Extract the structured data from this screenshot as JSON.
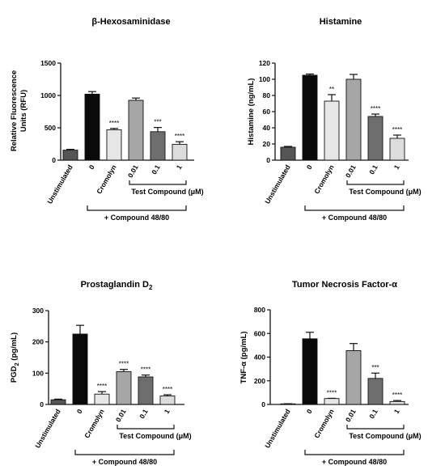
{
  "figure": {
    "colors": {
      "Unstimulated": "#555555",
      "0": "#0a0a0a",
      "Cromolyn": "#e6e6e6",
      "0.01": "#a6a6a6",
      "0.1": "#6e6e6e",
      "1": "#dcdcdc"
    }
  },
  "chart_data": [
    {
      "type": "bar",
      "title": "β-Hexosaminidase",
      "ylabel": "Relative Fluorescence Units (RFU)",
      "ylabel_lines": [
        "Relative Fluorescence",
        "Units (RFU)"
      ],
      "categories": [
        "Unstimulated",
        "0",
        "Cromolyn",
        "0.01",
        "0.1",
        "1"
      ],
      "values": [
        155,
        1020,
        470,
        925,
        440,
        245
      ],
      "errors": [
        12,
        40,
        20,
        35,
        65,
        40
      ],
      "significance": [
        "",
        "",
        "****",
        "",
        "***",
        "****"
      ],
      "ylim": [
        0,
        1500
      ],
      "yticks": [
        0,
        500,
        1000,
        1500
      ],
      "bracket_test_label": "Test Compound (μM)",
      "bracket_compound_label": "+ Compound 48/80",
      "grid": false,
      "legend": "none"
    },
    {
      "type": "bar",
      "title": "Histamine",
      "ylabel": "Histamine (ng/mL)",
      "ylabel_lines": [
        "Histamine (ng/mL)"
      ],
      "categories": [
        "Unstimulated",
        "0",
        "Cromolyn",
        "0.01",
        "0.1",
        "1"
      ],
      "values": [
        16,
        105,
        73,
        100,
        54,
        27
      ],
      "errors": [
        1,
        1.5,
        8,
        6,
        3,
        4
      ],
      "significance": [
        "",
        "",
        "**",
        "",
        "****",
        "****"
      ],
      "ylim": [
        0,
        120
      ],
      "yticks": [
        0,
        20,
        40,
        60,
        80,
        100,
        120
      ],
      "bracket_test_label": "Test Compound (μM)",
      "bracket_compound_label": "+ Compound 48/80",
      "grid": false,
      "legend": "none"
    },
    {
      "type": "bar",
      "title": "Prostaglandin D",
      "title_sub": "2",
      "ylabel": "PGD2 (pg/mL)",
      "ylabel_parts": [
        "PGD",
        "2",
        " (pg/mL)"
      ],
      "categories": [
        "Unstimulated",
        "0",
        "Cromolyn",
        "0.01",
        "0.1",
        "1"
      ],
      "values": [
        15,
        225,
        33,
        105,
        88,
        27
      ],
      "errors": [
        2,
        28,
        8,
        7,
        6,
        4
      ],
      "significance": [
        "",
        "",
        "****",
        "****",
        "****",
        "****"
      ],
      "ylim": [
        0,
        300
      ],
      "yticks": [
        0,
        100,
        200,
        300
      ],
      "bracket_test_label": "Test Compound (μM)",
      "bracket_compound_label": "+ Compound 48/80",
      "grid": false,
      "legend": "none"
    },
    {
      "type": "bar",
      "title": "Tumor Necrosis Factor-α",
      "ylabel": "TNF-α (pg/mL)",
      "ylabel_lines": [
        "TNF-α (pg/mL)"
      ],
      "categories": [
        "Unstimulated",
        "0",
        "Cromolyn",
        "0.01",
        "0.1",
        "1"
      ],
      "values": [
        5,
        555,
        50,
        455,
        220,
        25
      ],
      "errors": [
        1,
        55,
        2,
        60,
        45,
        8
      ],
      "significance": [
        "",
        "",
        "****",
        "",
        "***",
        "****"
      ],
      "ylim": [
        0,
        800
      ],
      "yticks": [
        0,
        200,
        400,
        600,
        800
      ],
      "bracket_test_label": "Test Compound (μM)",
      "bracket_compound_label": "+ Compound 48/80",
      "grid": false,
      "legend": "none"
    }
  ]
}
